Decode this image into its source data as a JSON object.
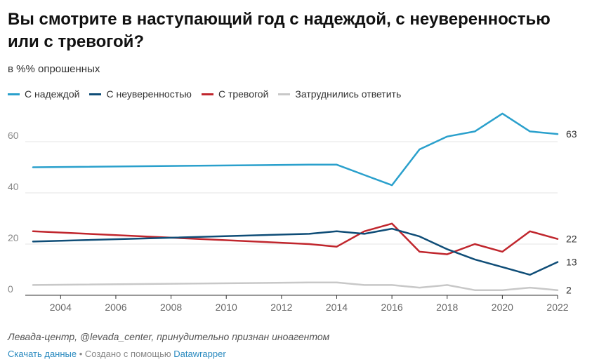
{
  "title": "Вы смотрите в наступающий год с надеждой, с неуверенностью или с тревогой?",
  "subtitle": "в %% опрошенных",
  "source": "Левада-центр, @levada_center, принудительно признан иноагентом",
  "footer": {
    "download_label": "Скачать данные",
    "separator": " • Создано с помощью ",
    "tool_label": "Datawrapper"
  },
  "chart_data": {
    "type": "line",
    "title": "Вы смотрите в наступающий год с надеждой, с неуверенностью или с тревогой?",
    "subtitle": "в %% опрошенных",
    "xlabel": "",
    "ylabel": "",
    "xlim": [
      2002.7,
      2022.3
    ],
    "ylim": [
      0,
      70
    ],
    "x_ticks": [
      "2004",
      "2006",
      "2008",
      "2010",
      "2012",
      "2014",
      "2016",
      "2018",
      "2020",
      "2022"
    ],
    "y_ticks": [
      "0",
      "20",
      "40",
      "60"
    ],
    "grid": true,
    "legend_position": "top-left",
    "series": [
      {
        "name": "С надеждой",
        "color": "#2aa0cc",
        "end_label": "63",
        "points": [
          [
            2003,
            50
          ],
          [
            2013,
            51
          ],
          [
            2014,
            51
          ],
          [
            2015,
            47
          ],
          [
            2016,
            43
          ],
          [
            2017,
            57
          ],
          [
            2018,
            62
          ],
          [
            2019,
            64
          ],
          [
            2020,
            71
          ],
          [
            2021,
            64
          ],
          [
            2022,
            63
          ]
        ]
      },
      {
        "name": "С неуверенностью",
        "color": "#0f4d77",
        "end_label": "13",
        "points": [
          [
            2003,
            21
          ],
          [
            2013,
            24
          ],
          [
            2014,
            25
          ],
          [
            2015,
            24
          ],
          [
            2016,
            26
          ],
          [
            2017,
            23
          ],
          [
            2018,
            18
          ],
          [
            2019,
            14
          ],
          [
            2020,
            11
          ],
          [
            2021,
            8
          ],
          [
            2022,
            13
          ]
        ]
      },
      {
        "name": "С тревогой",
        "color": "#c0262d",
        "end_label": "22",
        "points": [
          [
            2003,
            25
          ],
          [
            2013,
            20
          ],
          [
            2014,
            19
          ],
          [
            2015,
            25
          ],
          [
            2016,
            28
          ],
          [
            2017,
            17
          ],
          [
            2018,
            16
          ],
          [
            2019,
            20
          ],
          [
            2020,
            17
          ],
          [
            2021,
            25
          ],
          [
            2022,
            22
          ]
        ]
      },
      {
        "name": "Затруднились ответить",
        "color": "#c8c8c8",
        "end_label": "2",
        "points": [
          [
            2003,
            4
          ],
          [
            2013,
            5
          ],
          [
            2014,
            5
          ],
          [
            2015,
            4
          ],
          [
            2016,
            4
          ],
          [
            2017,
            3
          ],
          [
            2018,
            4
          ],
          [
            2019,
            2
          ],
          [
            2020,
            2
          ],
          [
            2021,
            3
          ],
          [
            2022,
            2
          ]
        ]
      }
    ]
  }
}
